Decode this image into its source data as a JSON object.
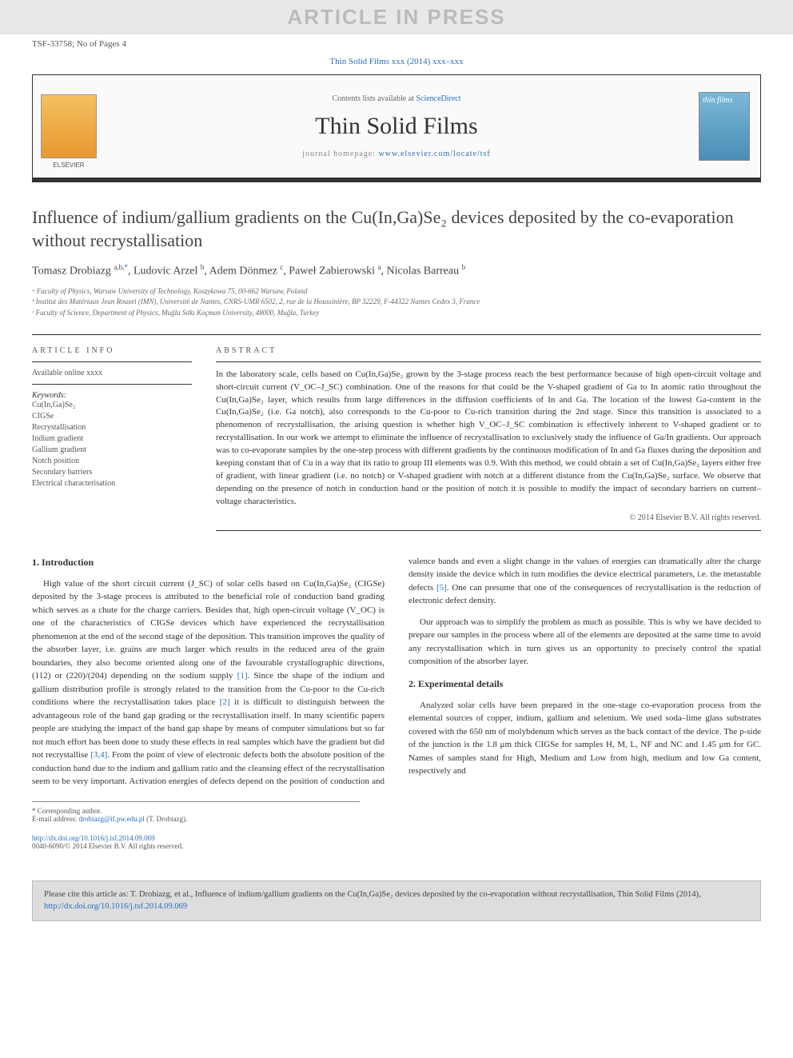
{
  "watermark": "ARTICLE IN PRESS",
  "header_meta": "TSF-33758; No of Pages 4",
  "journal_ref_text": "Thin Solid Films xxx (2014) xxx–xxx",
  "masthead": {
    "contents_prefix": "Contents lists available at ",
    "contents_link": "ScienceDirect",
    "journal_name": "Thin Solid Films",
    "homepage_prefix": "journal homepage: ",
    "homepage_url": "www.elsevier.com/locate/tsf",
    "publisher_logo_label": "ELSEVIER",
    "cover_text": "thin films"
  },
  "article": {
    "title": "Influence of indium/gallium gradients on the Cu(In,Ga)Se₂ devices deposited by the co-evaporation without recrystallisation",
    "authors_html": "Tomasz Drobiazg <sup>a,b,*</sup>, Ludovic Arzel <sup>b</sup>, Adem Dönmez <sup>c</sup>, Paweł Zabierowski <sup>a</sup>, Nicolas Barreau <sup>b</sup>",
    "affiliations": [
      "ᵃ Faculty of Physics, Warsaw University of Technology, Koszykowa 75, 00-662 Warsaw, Poland",
      "ᵇ Institut des Matériaux Jean Rouxel (IMN), Université de Nantes, CNRS-UMR 6502, 2, rue de la Houssinière, BP 32229, F-44322 Nantes Cedex 3, France",
      "ᶜ Faculty of Science, Department of Physics, Muğla Sıtkı Koçman University, 48000, Muğla, Turkey"
    ]
  },
  "article_info": {
    "section_label": "ARTICLE INFO",
    "available": "Available online xxxx",
    "keywords_label": "Keywords:",
    "keywords": [
      "Cu(In,Ga)Se₂",
      "CIGSe",
      "Recrystallisation",
      "Indium gradient",
      "Gallium gradient",
      "Notch position",
      "Secondary barriers",
      "Electrical characterisation"
    ]
  },
  "abstract": {
    "section_label": "ABSTRACT",
    "text": "In the laboratory scale, cells based on Cu(In,Ga)Se₂ grown by the 3-stage process reach the best performance because of high open-circuit voltage and short-circuit current (V_OC–J_SC) combination. One of the reasons for that could be the V-shaped gradient of Ga to In atomic ratio throughout the Cu(In,Ga)Se₂ layer, which results from large differences in the diffusion coefficients of In and Ga. The location of the lowest Ga-content in the Cu(In,Ga)Se₂ (i.e. Ga notch), also corresponds to the Cu-poor to Cu-rich transition during the 2nd stage. Since this transition is associated to a phenomenon of recrystallisation, the arising question is whether high V_OC–J_SC combination is effectively inherent to V-shaped gradient or to recrystallisation. In our work we attempt to eliminate the influence of recrystallisation to exclusively study the influence of Ga/In gradients. Our approach was to co-evaporate samples by the one-step process with different gradients by the continuous modification of In and Ga fluxes during the deposition and keeping constant that of Cu in a way that its ratio to group III elements was 0.9. With this method, we could obtain a set of Cu(In,Ga)Se₂ layers either free of gradient, with linear gradient (i.e. no notch) or V-shaped gradient with notch at a different distance from the Cu(In,Ga)Se₂ surface. We observe that depending on the presence of notch in conduction band or the position of notch it is possible to modify the impact of secondary barriers on current–voltage characteristics.",
    "copyright": "© 2014 Elsevier B.V. All rights reserved."
  },
  "sections": {
    "intro_heading": "1. Introduction",
    "intro_p1": "High value of the short circuit current (J_SC) of solar cells based on Cu(In,Ga)Se₂ (CIGSe) deposited by the 3-stage process is attributed to the beneficial role of conduction band grading which serves as a chute for the charge carriers. Besides that, high open-circuit voltage (V_OC) is one of the characteristics of CIGSe devices which have experienced the recrystallisation phenomenon at the end of the second stage of the deposition. This transition improves the quality of the absorber layer, i.e. grains are much larger which results in the reduced area of the grain boundaries, they also become oriented along one of the favourable crystallographic directions, (112) or (220)/(204) depending on the sodium supply [1]. Since the shape of the indium and gallium distribution profile is strongly related to the transition from the Cu-poor to the Cu-rich conditions where the recrystallisation takes place [2] it is difficult to distinguish between the advantageous role of the band gap grading or the recrystallisation itself. In many scientific papers people are studying the impact of the band gap shape by means of computer simulations but so far not much effort has been done to study these effects in real samples which have the gradient but did not recrystallise [3,4]. From the point of view of electronic defects both the absolute position of the conduction band due to the indium and gallium ratio and the cleansing effect of the recrystallisation seem to be very important. Activation energies of defects depend on the position of conduction and valence bands and even a slight change in the values of energies can dramatically alter the charge density inside the device which in turn modifies the device electrical parameters, i.e. the metastable defects [5]. One can presume that one of the consequences of recrystallisation is the reduction of electronic defect density.",
    "intro_p2": "Our approach was to simplify the problem as much as possible. This is why we have decided to prepare our samples in the process where all of the elements are deposited at the same time to avoid any recrystallisation which in turn gives us an opportunity to precisely control the spatial composition of the absorber layer.",
    "exp_heading": "2. Experimental details",
    "exp_p1": "Analyzed solar cells have been prepared in the one-stage co-evaporation process from the elemental sources of copper, indium, gallium and selenium. We used soda–lime glass substrates covered with the 650 nm of molybdenum which serves as the back contact of the device. The p-side of the junction is the 1.8 μm thick CIGSe for samples H, M, L, NF and NC and 1.45 μm for GC. Names of samples stand for High, Medium and Low from high, medium and low Ga content, respectively and"
  },
  "footnote": {
    "corr": "* Corresponding author.",
    "email_label": "E-mail address: ",
    "email": "drobiazg@if.pw.edu.pl",
    "email_suffix": " (T. Drobiazg)."
  },
  "doi": {
    "url": "http://dx.doi.org/10.1016/j.tsf.2014.09.069",
    "issn_line": "0040-6090/© 2014 Elsevier B.V. All rights reserved."
  },
  "citation_box": {
    "prefix": "Please cite this article as: T. Drobiazg, et al., Influence of indium/gallium gradients on the Cu(In,Ga)Se₂ devices deposited by the co-evaporation without recrystallisation, Thin Solid Films (2014), ",
    "link": "http://dx.doi.org/10.1016/j.tsf.2014.09.069"
  },
  "refs": {
    "r1": "[1]",
    "r2": "[2]",
    "r34": "[3,4]",
    "r5": "[5]"
  },
  "colors": {
    "link": "#2a6ebb",
    "watermark_bg": "#e8e8e8",
    "citation_bg": "#dddddd",
    "rule": "#333333"
  }
}
